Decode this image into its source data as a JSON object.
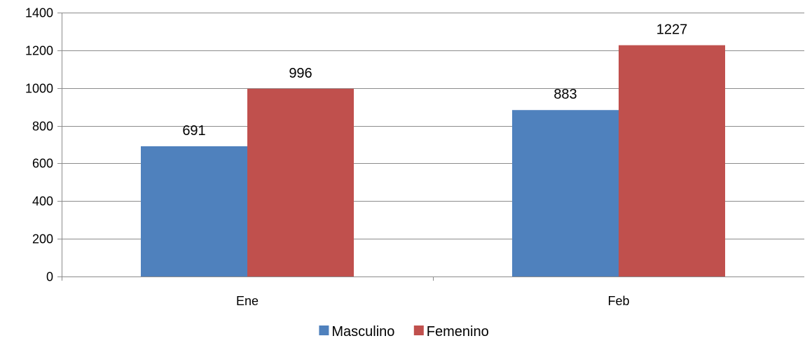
{
  "chart_data": {
    "type": "bar",
    "title": "",
    "xlabel": "",
    "ylabel": "",
    "categories": [
      "Ene",
      "Feb"
    ],
    "series": [
      {
        "name": "Masculino",
        "values": [
          691,
          883
        ],
        "color": "#4F81BD"
      },
      {
        "name": "Femenino",
        "values": [
          996,
          1227
        ],
        "color": "#C0504D"
      }
    ],
    "ylim": [
      0,
      1400
    ],
    "yticks": [
      0,
      200,
      400,
      600,
      800,
      1000,
      1200,
      1400
    ],
    "ytick_labels": [
      "0",
      "200",
      "400",
      "600",
      "800",
      "1000",
      "1200",
      "1400"
    ],
    "data_labels": [
      [
        "691",
        "883"
      ],
      [
        "996",
        "1227"
      ]
    ],
    "grid": true,
    "legend_position": "bottom"
  },
  "colors": {
    "gridline": "#8C8C8C",
    "axis": "#8C8C8C"
  }
}
